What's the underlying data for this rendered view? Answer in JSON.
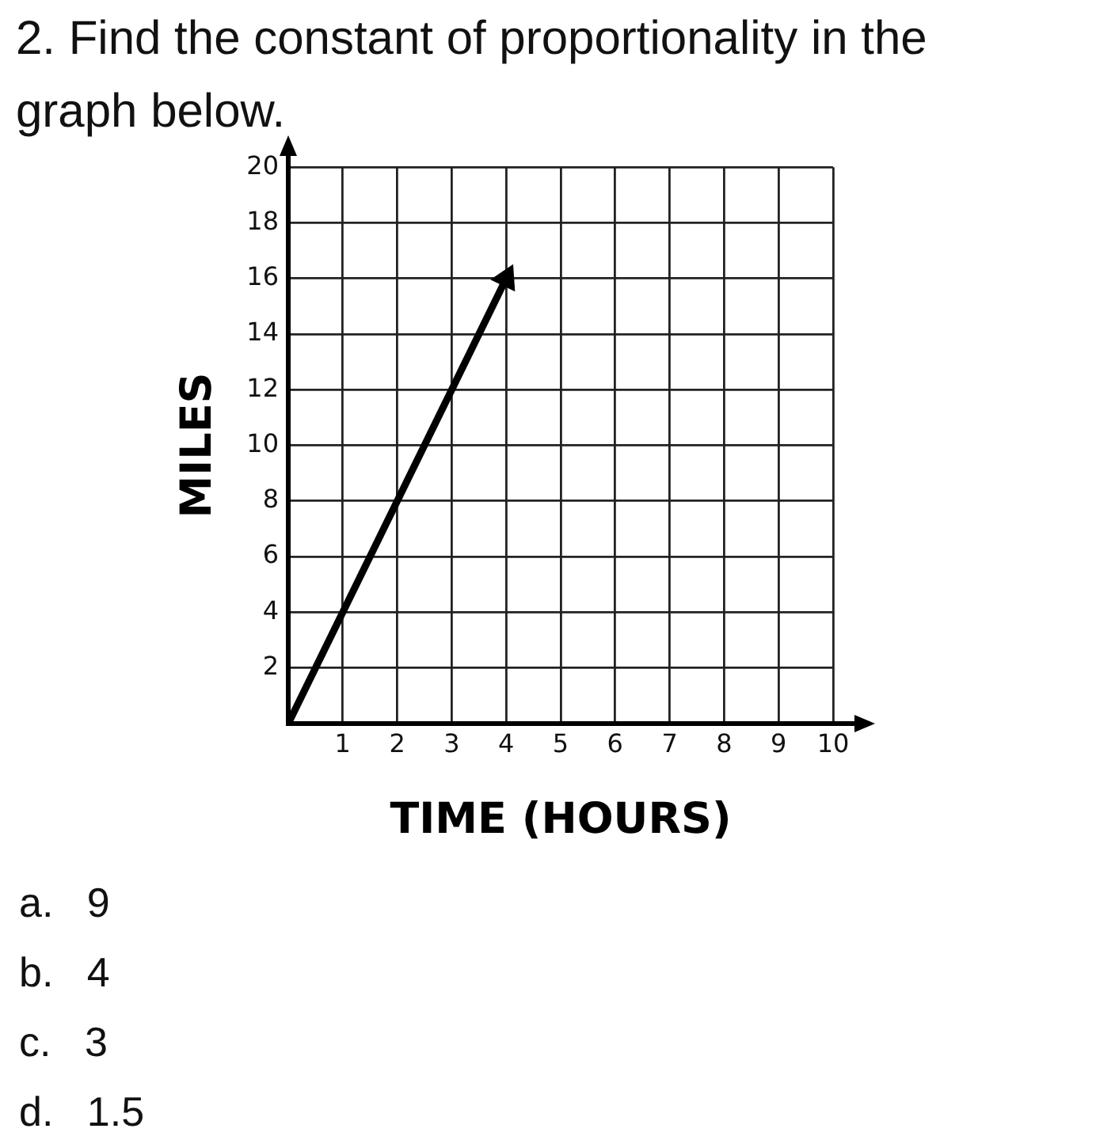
{
  "chart_data": {
    "type": "line",
    "title": "2. Find the constant of proportionality in the graph below.",
    "xlabel": "TIME (HOURS)",
    "ylabel": "MILES",
    "x": [
      0,
      4
    ],
    "series": [
      {
        "color": "#000000",
        "values": [
          0,
          16
        ]
      }
    ],
    "xlim": [
      0,
      10
    ],
    "ylim": [
      0,
      20
    ],
    "xticks": [
      1,
      2,
      3,
      4,
      5,
      6,
      7,
      8,
      9,
      10
    ],
    "yticks": [
      2,
      4,
      6,
      8,
      10,
      12,
      14,
      16,
      18,
      20
    ],
    "grid": true,
    "annotations": [
      "a. 9",
      "b. 4",
      "c. 3",
      "d. 1.5"
    ]
  }
}
